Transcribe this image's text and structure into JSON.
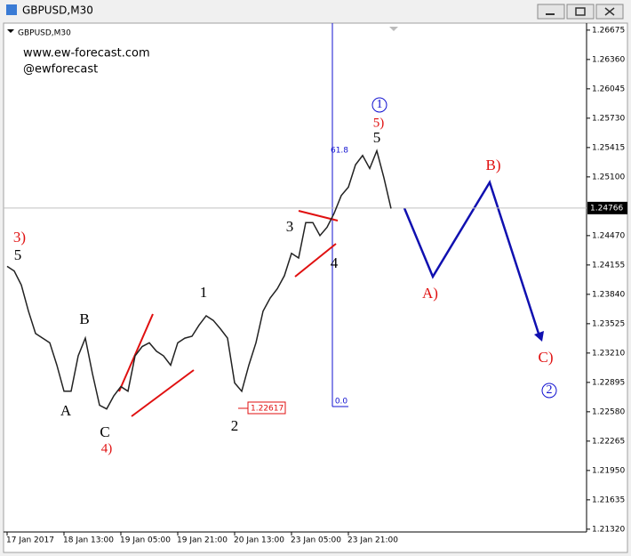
{
  "window_title": "GBPUSD,M30",
  "chart_data": {
    "type": "line",
    "title": "GBPUSD,M30",
    "subtitle_lines": [
      "www.ew-forecast.com",
      "@ewforecast"
    ],
    "categories": [
      "17 Jan 2017",
      null,
      null,
      null,
      null,
      null,
      null,
      null,
      "18 Jan 13:00",
      null,
      null,
      null,
      null,
      null,
      null,
      null,
      "19 Jan 05:00",
      null,
      null,
      null,
      null,
      null,
      null,
      null,
      "19 Jan 21:00",
      null,
      null,
      null,
      null,
      null,
      null,
      null,
      "20 Jan 13:00",
      null,
      null,
      null,
      null,
      null,
      null,
      null,
      "23 Jan 05:00",
      null,
      null,
      null,
      null,
      null,
      null,
      null,
      "23 Jan 21:00",
      null,
      null,
      null,
      null,
      null,
      null
    ],
    "series": [
      {
        "name": "GBPUSD",
        "color": "#222222",
        "values": [
          1.2414,
          1.2409,
          1.2394,
          1.2366,
          1.2342,
          1.2337,
          1.2332,
          1.2308,
          1.228,
          1.228,
          1.2318,
          1.2337,
          1.2299,
          1.2265,
          1.2261,
          1.2275,
          1.2285,
          1.228,
          1.2318,
          1.2328,
          1.2332,
          1.2323,
          1.2318,
          1.2308,
          1.2332,
          1.2337,
          1.2339,
          1.2351,
          1.2361,
          1.2356,
          1.2347,
          1.2337,
          1.2289,
          1.228,
          1.2308,
          1.2332,
          1.2366,
          1.238,
          1.239,
          1.2404,
          1.2428,
          1.2423,
          1.2461,
          1.2461,
          1.2447,
          1.2456,
          1.2471,
          1.249,
          1.2499,
          1.2523,
          1.2533,
          1.2519,
          1.2538,
          1.2509,
          1.2476
        ]
      }
    ],
    "ylim": [
      1.2129,
      1.2675
    ],
    "yticks": [
      1.26675,
      {
        "value": 1.2636,
        "label": "1.26360"
      },
      1.26045,
      {
        "value": 1.2573,
        "label": "1.25730"
      },
      1.25415,
      {
        "value": 1.251,
        "label": "1.25100"
      },
      {
        "value": 1.2447,
        "label": "1.24470"
      },
      1.24155,
      {
        "value": 1.2384,
        "label": "1.23840"
      },
      1.23525,
      {
        "value": 1.2321,
        "label": "1.23210"
      },
      1.22895,
      {
        "value": 1.2258,
        "label": "1.22580"
      },
      1.22265,
      {
        "value": 1.2195,
        "label": "1.21950"
      },
      1.21635,
      {
        "value": 1.2132,
        "label": "1.21320"
      }
    ],
    "current_price": 1.24766,
    "low_marker": 1.22617,
    "annotations": [
      {
        "text": "3)",
        "color": "#e01010"
      },
      {
        "text": "5",
        "color": "#000000"
      },
      {
        "text": "A",
        "color": "#000000"
      },
      {
        "text": "B",
        "color": "#000000"
      },
      {
        "text": "C",
        "color": "#000000"
      },
      {
        "text": "4)",
        "color": "#e01010"
      },
      {
        "text": "1",
        "color": "#000000"
      },
      {
        "text": "2",
        "color": "#000000"
      },
      {
        "text": "3",
        "color": "#000000"
      },
      {
        "text": "4",
        "color": "#000000"
      },
      {
        "text": "5",
        "color": "#000000"
      },
      {
        "text": "5)",
        "color": "#e01010"
      },
      {
        "text": "1",
        "color": "#1010d0"
      },
      {
        "text": "A)",
        "color": "#e01010"
      },
      {
        "text": "B)",
        "color": "#e01010"
      },
      {
        "text": "C)",
        "color": "#e01010"
      },
      {
        "text": "2",
        "color": "#1010d0"
      },
      {
        "text": "61.8",
        "color": "#1010d0"
      },
      {
        "text": "0.0",
        "color": "#1010d0"
      }
    ]
  }
}
